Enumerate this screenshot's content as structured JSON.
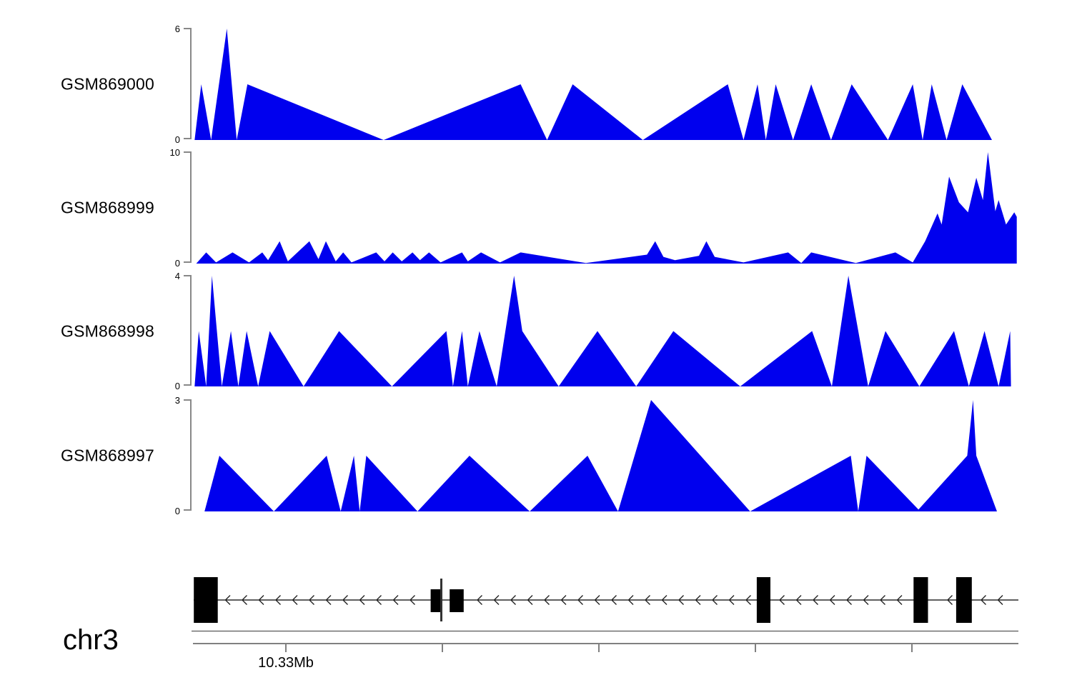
{
  "chart_data": {
    "type": "area",
    "chromosome": "chr3",
    "accent_color": "#0000ee",
    "x_axis_note": "x positions are fractions of the visible genomic window on chr3 around 10.33Mb",
    "tracks": [
      {
        "label": "GSM869000",
        "ylim": [
          0,
          6
        ],
        "y_top_label": "6",
        "y_bottom_label": "0",
        "points": [
          [
            0.002,
            0
          ],
          [
            0.01,
            3
          ],
          [
            0.022,
            0
          ],
          [
            0.041,
            6
          ],
          [
            0.053,
            0
          ],
          [
            0.066,
            3
          ],
          [
            0.231,
            0
          ],
          [
            0.397,
            3
          ],
          [
            0.429,
            0
          ],
          [
            0.46,
            3
          ],
          [
            0.545,
            0
          ],
          [
            0.648,
            3
          ],
          [
            0.667,
            0
          ],
          [
            0.684,
            3
          ],
          [
            0.694,
            0
          ],
          [
            0.706,
            3
          ],
          [
            0.727,
            0
          ],
          [
            0.749,
            3
          ],
          [
            0.773,
            0
          ],
          [
            0.798,
            3
          ],
          [
            0.842,
            0
          ],
          [
            0.872,
            3
          ],
          [
            0.884,
            0
          ],
          [
            0.895,
            3
          ],
          [
            0.913,
            0
          ],
          [
            0.932,
            3
          ],
          [
            0.968,
            0
          ]
        ]
      },
      {
        "label": "GSM868999",
        "ylim": [
          0,
          10
        ],
        "y_top_label": "10",
        "y_bottom_label": "0",
        "points": [
          [
            0.004,
            0
          ],
          [
            0.016,
            1
          ],
          [
            0.028,
            0.1
          ],
          [
            0.048,
            1
          ],
          [
            0.068,
            0.1
          ],
          [
            0.084,
            1
          ],
          [
            0.091,
            0.3
          ],
          [
            0.105,
            2
          ],
          [
            0.115,
            0.2
          ],
          [
            0.141,
            2
          ],
          [
            0.152,
            0.4
          ],
          [
            0.161,
            2
          ],
          [
            0.173,
            0.2
          ],
          [
            0.182,
            1
          ],
          [
            0.192,
            0.1
          ],
          [
            0.222,
            1
          ],
          [
            0.232,
            0.2
          ],
          [
            0.242,
            1
          ],
          [
            0.253,
            0.2
          ],
          [
            0.266,
            1
          ],
          [
            0.275,
            0.3
          ],
          [
            0.286,
            1
          ],
          [
            0.3,
            0.1
          ],
          [
            0.326,
            1
          ],
          [
            0.333,
            0.2
          ],
          [
            0.349,
            1
          ],
          [
            0.372,
            0.1
          ],
          [
            0.397,
            1
          ],
          [
            0.476,
            0.05
          ],
          [
            0.55,
            0.8
          ],
          [
            0.56,
            2
          ],
          [
            0.57,
            0.6
          ],
          [
            0.584,
            0.3
          ],
          [
            0.613,
            0.7
          ],
          [
            0.622,
            2
          ],
          [
            0.632,
            0.6
          ],
          [
            0.667,
            0.1
          ],
          [
            0.721,
            1
          ],
          [
            0.737,
            0.05
          ],
          [
            0.749,
            1
          ],
          [
            0.803,
            0.05
          ],
          [
            0.851,
            1
          ],
          [
            0.872,
            0.1
          ],
          [
            0.887,
            2
          ],
          [
            0.902,
            4.5
          ],
          [
            0.907,
            3.5
          ],
          [
            0.916,
            7.8
          ],
          [
            0.928,
            5.5
          ],
          [
            0.939,
            4.6
          ],
          [
            0.949,
            7.7
          ],
          [
            0.957,
            5.7
          ],
          [
            0.963,
            10
          ],
          [
            0.972,
            4.7
          ],
          [
            0.976,
            5.7
          ],
          [
            0.985,
            3.5
          ],
          [
            0.995,
            4.6
          ],
          [
            0.998,
            4.2
          ]
        ]
      },
      {
        "label": "GSM868998",
        "ylim": [
          0,
          4
        ],
        "y_top_label": "4",
        "y_bottom_label": "0",
        "points": [
          [
            0.002,
            0
          ],
          [
            0.007,
            2
          ],
          [
            0.016,
            0
          ],
          [
            0.023,
            4
          ],
          [
            0.035,
            0
          ],
          [
            0.046,
            2
          ],
          [
            0.055,
            0
          ],
          [
            0.065,
            2
          ],
          [
            0.079,
            0
          ],
          [
            0.093,
            2
          ],
          [
            0.134,
            0
          ],
          [
            0.177,
            2
          ],
          [
            0.241,
            0
          ],
          [
            0.307,
            2
          ],
          [
            0.315,
            0
          ],
          [
            0.326,
            2
          ],
          [
            0.333,
            0
          ],
          [
            0.347,
            2
          ],
          [
            0.368,
            0
          ],
          [
            0.389,
            4
          ],
          [
            0.399,
            2
          ],
          [
            0.443,
            0
          ],
          [
            0.49,
            2
          ],
          [
            0.537,
            0
          ],
          [
            0.582,
            2
          ],
          [
            0.663,
            0
          ],
          [
            0.75,
            2
          ],
          [
            0.774,
            0
          ],
          [
            0.794,
            4
          ],
          [
            0.818,
            0
          ],
          [
            0.839,
            2
          ],
          [
            0.88,
            0
          ],
          [
            0.922,
            2
          ],
          [
            0.94,
            0
          ],
          [
            0.959,
            2
          ],
          [
            0.976,
            0
          ],
          [
            0.99,
            2
          ],
          [
            0.991,
            0
          ]
        ]
      },
      {
        "label": "GSM868997",
        "ylim": [
          0,
          3
        ],
        "y_top_label": "3",
        "y_bottom_label": "0",
        "points": [
          [
            0.014,
            0
          ],
          [
            0.032,
            1.5
          ],
          [
            0.098,
            0
          ],
          [
            0.162,
            1.5
          ],
          [
            0.179,
            0
          ],
          [
            0.195,
            1.5
          ],
          [
            0.202,
            0
          ],
          [
            0.21,
            1.5
          ],
          [
            0.272,
            0
          ],
          [
            0.335,
            1.5
          ],
          [
            0.408,
            0
          ],
          [
            0.478,
            1.5
          ],
          [
            0.515,
            0
          ],
          [
            0.555,
            3
          ],
          [
            0.675,
            0
          ],
          [
            0.797,
            1.5
          ],
          [
            0.806,
            0
          ],
          [
            0.816,
            1.5
          ],
          [
            0.879,
            0.05
          ],
          [
            0.938,
            1.5
          ],
          [
            0.945,
            3
          ],
          [
            0.949,
            1.5
          ],
          [
            0.974,
            0
          ]
        ]
      }
    ],
    "gene_track": {
      "strand_direction": "left",
      "exon_color": "#000000",
      "exons": [
        {
          "x": 0.001,
          "w": 0.029,
          "size": "tall"
        },
        {
          "x": 0.288,
          "w": 0.014,
          "size": "short"
        },
        {
          "x": 0.2996,
          "w": 0.0026,
          "size": "marker"
        },
        {
          "x": 0.311,
          "w": 0.017,
          "size": "short"
        },
        {
          "x": 0.683,
          "w": 0.0165,
          "size": "tall"
        },
        {
          "x": 0.873,
          "w": 0.0175,
          "size": "tall"
        },
        {
          "x": 0.9246,
          "w": 0.019,
          "size": "tall"
        }
      ]
    },
    "genome_axis": {
      "ticks": [
        0.1126,
        0.3022,
        0.4918,
        0.6814,
        0.871
      ],
      "labels": [
        {
          "tick_index": 0,
          "text": "10.33Mb"
        }
      ]
    }
  }
}
